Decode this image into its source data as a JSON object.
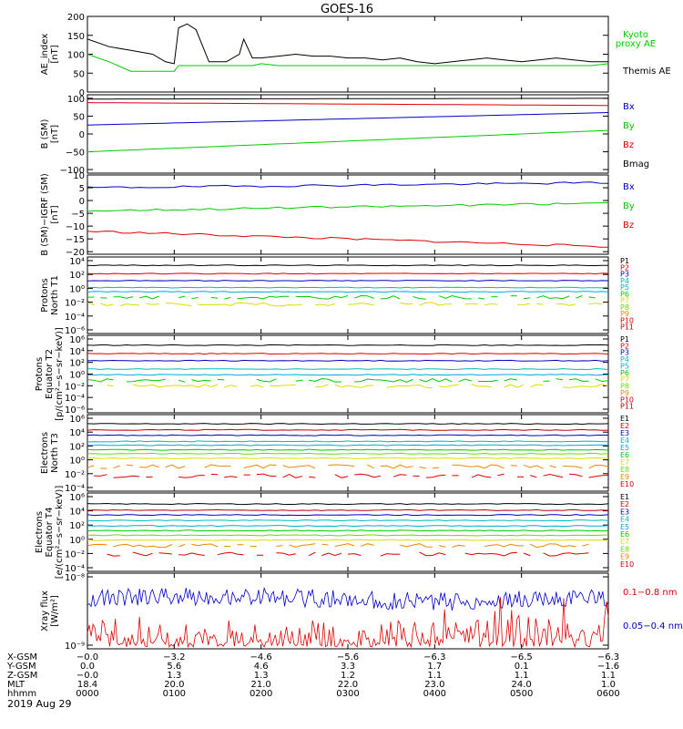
{
  "title": "GOES-16",
  "colors": {
    "black": "#000000",
    "red": "#dd0000",
    "green": "#00cc00",
    "blue": "#0000cc",
    "cyan": "#00aadd",
    "teal": "#00bbbb",
    "lightgreen": "#66dd00",
    "yellow": "#dddd00",
    "orange": "#ee8800",
    "darkred": "#bb0000"
  },
  "chart_data": [
    {
      "type": "line",
      "id": "ae_index",
      "ylabel": [
        "AE_index",
        "[nT]"
      ],
      "ylim": [
        0,
        200
      ],
      "yticks": [
        "0",
        "50",
        "100",
        "150",
        "200"
      ],
      "legend": [
        "Kyoto",
        "proxy AE",
        "Themis AE"
      ],
      "x_hours": [
        0,
        0.25,
        0.5,
        0.75,
        0.9,
        1.0,
        1.05,
        1.15,
        1.25,
        1.4,
        1.6,
        1.75,
        1.8,
        1.9,
        2.0,
        2.2,
        2.4,
        2.6,
        2.8,
        3.0,
        3.2,
        3.4,
        3.6,
        3.8,
        4.0,
        4.2,
        4.4,
        4.6,
        4.8,
        5.0,
        5.2,
        5.4,
        5.6,
        5.8,
        6.0
      ],
      "series": [
        {
          "name": "Themis AE",
          "color": "black",
          "values": [
            140,
            120,
            110,
            100,
            80,
            75,
            170,
            180,
            165,
            80,
            80,
            100,
            140,
            90,
            90,
            95,
            100,
            95,
            95,
            90,
            90,
            85,
            90,
            80,
            75,
            80,
            85,
            90,
            85,
            80,
            85,
            90,
            85,
            80,
            80
          ]
        },
        {
          "name": "Kyoto proxy AE",
          "color": "green",
          "values": [
            100,
            80,
            55,
            55,
            55,
            55,
            70,
            70,
            70,
            70,
            70,
            70,
            70,
            70,
            75,
            70,
            70,
            70,
            70,
            70,
            70,
            70,
            70,
            70,
            70,
            70,
            70,
            70,
            70,
            70,
            70,
            70,
            70,
            70,
            75
          ]
        }
      ]
    },
    {
      "type": "line",
      "id": "b_sm",
      "ylabel": [
        "B (SM)",
        "[nT]"
      ],
      "ylim": [
        -110,
        110
      ],
      "yticks": [
        "−100",
        "−50",
        "0",
        "50",
        "100"
      ],
      "legend": [
        "Bx",
        "By",
        "Bz",
        "Bmag"
      ],
      "series": [
        {
          "name": "Bx",
          "color": "blue",
          "start": 25,
          "end": 60
        },
        {
          "name": "By",
          "color": "green",
          "start": -50,
          "end": 10
        },
        {
          "name": "Bz",
          "color": "red",
          "start": 88,
          "end": 80
        },
        {
          "name": "Bmag",
          "color": "black",
          "start": 98,
          "end": 100
        }
      ]
    },
    {
      "type": "line",
      "id": "b_sm_igrf",
      "ylabel": [
        "B (SM)−IGRF (SM)",
        "[nT]"
      ],
      "ylim": [
        -21,
        10
      ],
      "yticks": [
        "−20",
        "−15",
        "−10",
        "−5",
        "0",
        "5",
        "10"
      ],
      "legend": [
        "Bx",
        "By",
        "Bz"
      ],
      "series": [
        {
          "name": "Bx",
          "color": "blue",
          "start": 5,
          "end": 7
        },
        {
          "name": "By",
          "color": "green",
          "start": -4,
          "end": -1
        },
        {
          "name": "Bz",
          "color": "red",
          "start": -12,
          "end": -18
        }
      ]
    },
    {
      "type": "line",
      "id": "protons_t1",
      "ylabel": [
        "Protons",
        "North T1"
      ],
      "ylog": [
        -7,
        4
      ],
      "yticks": [
        "10⁴",
        "10²",
        "10⁰",
        "10⁻²",
        "10⁻⁴",
        "10⁻⁶"
      ],
      "legend": [
        "P1",
        "P2",
        "P3",
        "P4",
        "P5",
        "P6",
        "P7",
        "P8",
        "P9",
        "P10",
        "P11"
      ],
      "series": [
        {
          "name": "P1",
          "color": "black",
          "level": 2.8
        },
        {
          "name": "P2",
          "color": "red",
          "level": 1.6
        },
        {
          "name": "P3",
          "color": "blue",
          "level": 0.6
        },
        {
          "name": "P4",
          "color": "teal",
          "level": -0.4
        },
        {
          "name": "P5",
          "color": "cyan",
          "level": -1.0
        },
        {
          "name": "P6",
          "color": "green",
          "level": -1.8
        },
        {
          "name": "P7",
          "color": "yellow",
          "level": -2.8
        }
      ]
    },
    {
      "type": "line",
      "id": "protons_t2",
      "ylabel": [
        "Protons",
        "Equator T2",
        "[p/(cm²−s−sr−keV)]"
      ],
      "ylog": [
        -7,
        4
      ],
      "yticks": [
        "10⁶",
        "10⁴",
        "10²",
        "10⁰",
        "10⁻²",
        "10⁻⁴",
        "10⁻⁶"
      ],
      "legend": [
        "P1",
        "P2",
        "P3",
        "P4",
        "P5",
        "P6",
        "P7",
        "P8",
        "P9",
        "P10",
        "P11"
      ],
      "series": [
        {
          "name": "P1",
          "color": "black",
          "level": 2.6
        },
        {
          "name": "P2",
          "color": "red",
          "level": 1.4
        },
        {
          "name": "P3",
          "color": "blue",
          "level": 0.4
        },
        {
          "name": "P4",
          "color": "teal",
          "level": -0.8
        },
        {
          "name": "P5",
          "color": "cyan",
          "level": -1.6
        },
        {
          "name": "P6",
          "color": "green",
          "level": -2.4
        },
        {
          "name": "P7",
          "color": "yellow",
          "level": -3.2
        }
      ]
    },
    {
      "type": "line",
      "id": "electrons_t3",
      "ylabel": [
        "Electrons",
        "North T3"
      ],
      "ylog": [
        -4,
        6
      ],
      "yticks": [
        "10⁶",
        "10⁴",
        "10²",
        "10⁰",
        "10⁻²",
        "10⁻⁴"
      ],
      "legend": [
        "E1",
        "E2",
        "E3",
        "E4",
        "E5",
        "E6",
        "E7",
        "E8",
        "E9",
        "E10"
      ],
      "series": [
        {
          "name": "E1",
          "color": "black",
          "level": 4.8
        },
        {
          "name": "E2",
          "color": "darkred",
          "level": 4.0
        },
        {
          "name": "E3",
          "color": "blue",
          "level": 3.3
        },
        {
          "name": "E4",
          "color": "teal",
          "level": 2.5
        },
        {
          "name": "E5",
          "color": "cyan",
          "level": 2.0
        },
        {
          "name": "E6",
          "color": "green",
          "level": 1.4
        },
        {
          "name": "E7",
          "color": "lightgreen",
          "level": 0.9
        },
        {
          "name": "E8",
          "color": "yellow",
          "level": 0.3
        },
        {
          "name": "E9",
          "color": "orange",
          "level": -0.8
        },
        {
          "name": "E10",
          "color": "red",
          "level": -2.0
        }
      ]
    },
    {
      "type": "line",
      "id": "electrons_t4",
      "ylabel": [
        "Electrons",
        "Equator T4",
        "[e/(cm²−s−sr−keV)]"
      ],
      "ylog": [
        -4,
        6
      ],
      "yticks": [
        "10⁶",
        "10⁴",
        "10²",
        "10⁰",
        "10⁻²",
        "10⁻⁴"
      ],
      "legend": [
        "E1",
        "E2",
        "E3",
        "E4",
        "E5",
        "E6",
        "E7",
        "E8",
        "E9",
        "E10"
      ],
      "series": [
        {
          "name": "E1",
          "color": "black",
          "level": 4.6
        },
        {
          "name": "E2",
          "color": "darkred",
          "level": 3.8
        },
        {
          "name": "E3",
          "color": "blue",
          "level": 3.2
        },
        {
          "name": "E4",
          "color": "teal",
          "level": 2.5
        },
        {
          "name": "E5",
          "color": "cyan",
          "level": 1.8
        },
        {
          "name": "E6",
          "color": "green",
          "level": 1.2
        },
        {
          "name": "E7",
          "color": "lightgreen",
          "level": 0.6
        },
        {
          "name": "E8",
          "color": "yellow",
          "level": 0.0
        },
        {
          "name": "E9",
          "color": "orange",
          "level": -0.7
        },
        {
          "name": "E10",
          "color": "red",
          "level": -1.8
        }
      ]
    },
    {
      "type": "line",
      "id": "xray_flux",
      "ylabel": [
        "Xray flux",
        "[W/m²]"
      ],
      "ylog": [
        -9,
        -8
      ],
      "yticks": [
        "10⁻⁸",
        "10⁻⁹"
      ],
      "legend": [
        "0.1−0.8 nm",
        "0.05−0.4 nm"
      ],
      "series": [
        {
          "name": "0.1−0.8 nm",
          "color": "red"
        },
        {
          "name": "0.05−0.4 nm",
          "color": "blue"
        }
      ]
    }
  ],
  "xaxis": {
    "rows": [
      {
        "label": "X-GSM",
        "values": [
          "−0.0",
          "−3.2",
          "−4.6",
          "−5.6",
          "−6.3",
          "−6.5",
          "−6.3"
        ]
      },
      {
        "label": "Y-GSM",
        "values": [
          "0.0",
          "5.6",
          "4.6",
          "3.3",
          "1.7",
          "0.1",
          "−1.6"
        ]
      },
      {
        "label": "Z-GSM",
        "values": [
          "−0.0",
          "1.3",
          "1.3",
          "1.2",
          "1.1",
          "1.1",
          "1.1"
        ]
      },
      {
        "label": "MLT",
        "values": [
          "18.4",
          "20.0",
          "21.0",
          "22.0",
          "23.0",
          "24.0",
          "1.0"
        ]
      },
      {
        "label": "hhmm",
        "values": [
          "0000",
          "0100",
          "0200",
          "0300",
          "0400",
          "0500",
          "0600"
        ]
      }
    ],
    "date": "2019 Aug 29"
  }
}
